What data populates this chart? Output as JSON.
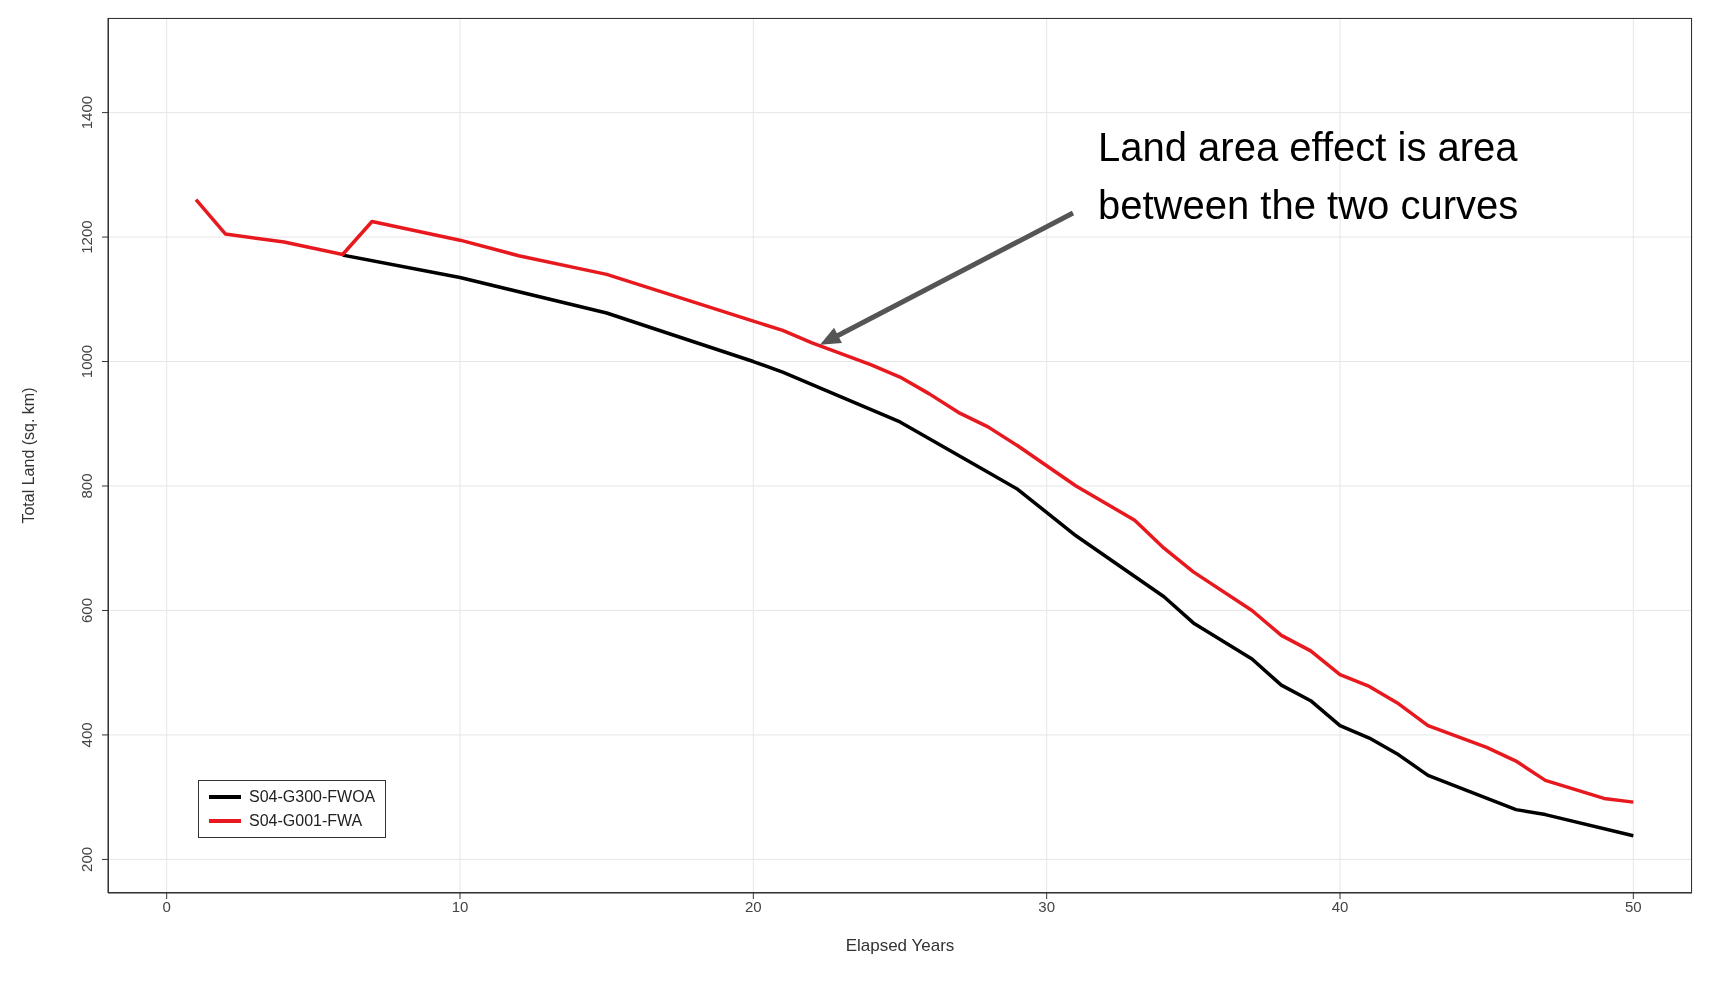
{
  "chart_data": {
    "type": "line",
    "xlabel": "Elapsed Years",
    "ylabel": "Total Land (sq. km)",
    "xlim": [
      -2,
      52
    ],
    "xticks": [
      0,
      10,
      20,
      30,
      40,
      50
    ],
    "ylim": [
      146,
      1552
    ],
    "yticks": [
      200,
      400,
      600,
      800,
      1000,
      1200,
      1400
    ],
    "grid": true,
    "legend": "bottom left",
    "marker": "none",
    "line_style": "solid",
    "annotations": [
      "Land area effect is area between the two curves"
    ],
    "series": [
      {
        "name": "S04-G300-FWOA",
        "color": "#000000",
        "x": [
          6,
          10,
          15,
          20,
          21,
          25,
          28,
          29,
          31,
          34,
          35,
          37,
          38,
          39,
          40,
          41,
          42,
          43,
          46,
          47,
          50
        ],
        "values": [
          1171,
          1135,
          1078,
          1000,
          983,
          903,
          822,
          795,
          720,
          622,
          580,
          522,
          480,
          455,
          415,
          395,
          368,
          335,
          280,
          272,
          238
        ]
      },
      {
        "name": "S04-G001-FWA",
        "color": "#e8191e",
        "x": [
          1,
          2,
          4,
          6,
          7,
          10,
          12,
          15,
          18,
          20,
          21,
          22,
          24,
          25,
          26,
          27,
          28,
          29,
          31,
          33,
          34,
          35,
          37,
          38,
          39,
          40,
          41,
          42,
          43,
          45,
          46,
          47,
          49,
          50
        ],
        "values": [
          1260,
          1205,
          1192,
          1172,
          1225,
          1195,
          1170,
          1140,
          1095,
          1065,
          1050,
          1030,
          995,
          975,
          948,
          918,
          895,
          865,
          800,
          745,
          700,
          662,
          600,
          560,
          535,
          497,
          478,
          450,
          415,
          380,
          358,
          327,
          298,
          292
        ]
      }
    ]
  }
}
